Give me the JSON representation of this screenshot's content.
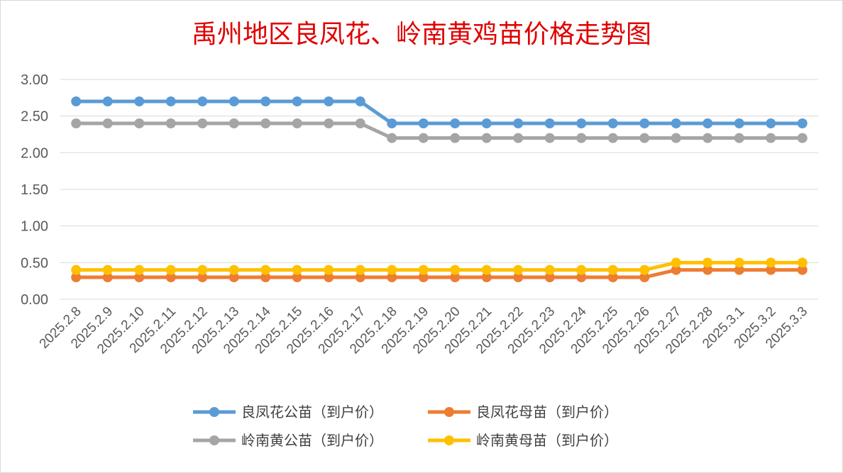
{
  "chart_data": {
    "type": "line",
    "title": "禹州地区良凤花、岭南黄鸡苗价格走势图",
    "xlabel": "",
    "ylabel": "",
    "ylim": [
      0,
      3
    ],
    "y_ticks": [
      "0.00",
      "0.50",
      "1.00",
      "1.50",
      "2.00",
      "2.50",
      "3.00"
    ],
    "y_tick_values": [
      0,
      0.5,
      1,
      1.5,
      2,
      2.5,
      3
    ],
    "grid": true,
    "legend_position": "bottom",
    "categories": [
      "2025.2.8",
      "2025.2.9",
      "2025.2.10",
      "2025.2.11",
      "2025.2.12",
      "2025.2.13",
      "2025.2.14",
      "2025.2.15",
      "2025.2.16",
      "2025.2.17",
      "2025.2.18",
      "2025.2.19",
      "2025.2.20",
      "2025.2.21",
      "2025.2.22",
      "2025.2.23",
      "2025.2.24",
      "2025.2.25",
      "2025.2.26",
      "2025.2.27",
      "2025.2.28",
      "2025.3.1",
      "2025.3.2",
      "2025.3.3"
    ],
    "series": [
      {
        "name": "良凤花公苗（到户价）",
        "color": "#5b9bd5",
        "values": [
          2.7,
          2.7,
          2.7,
          2.7,
          2.7,
          2.7,
          2.7,
          2.7,
          2.7,
          2.7,
          2.4,
          2.4,
          2.4,
          2.4,
          2.4,
          2.4,
          2.4,
          2.4,
          2.4,
          2.4,
          2.4,
          2.4,
          2.4,
          2.4
        ]
      },
      {
        "name": "良凤花母苗（到户价）",
        "color": "#ed7d31",
        "values": [
          0.3,
          0.3,
          0.3,
          0.3,
          0.3,
          0.3,
          0.3,
          0.3,
          0.3,
          0.3,
          0.3,
          0.3,
          0.3,
          0.3,
          0.3,
          0.3,
          0.3,
          0.3,
          0.3,
          0.4,
          0.4,
          0.4,
          0.4,
          0.4
        ]
      },
      {
        "name": "岭南黄公苗（到户价）",
        "color": "#a5a5a5",
        "values": [
          2.4,
          2.4,
          2.4,
          2.4,
          2.4,
          2.4,
          2.4,
          2.4,
          2.4,
          2.4,
          2.2,
          2.2,
          2.2,
          2.2,
          2.2,
          2.2,
          2.2,
          2.2,
          2.2,
          2.2,
          2.2,
          2.2,
          2.2,
          2.2
        ]
      },
      {
        "name": "岭南黄母苗（到户价）",
        "color": "#ffc000",
        "values": [
          0.4,
          0.4,
          0.4,
          0.4,
          0.4,
          0.4,
          0.4,
          0.4,
          0.4,
          0.4,
          0.4,
          0.4,
          0.4,
          0.4,
          0.4,
          0.4,
          0.4,
          0.4,
          0.4,
          0.5,
          0.5,
          0.5,
          0.5,
          0.5
        ]
      }
    ]
  }
}
